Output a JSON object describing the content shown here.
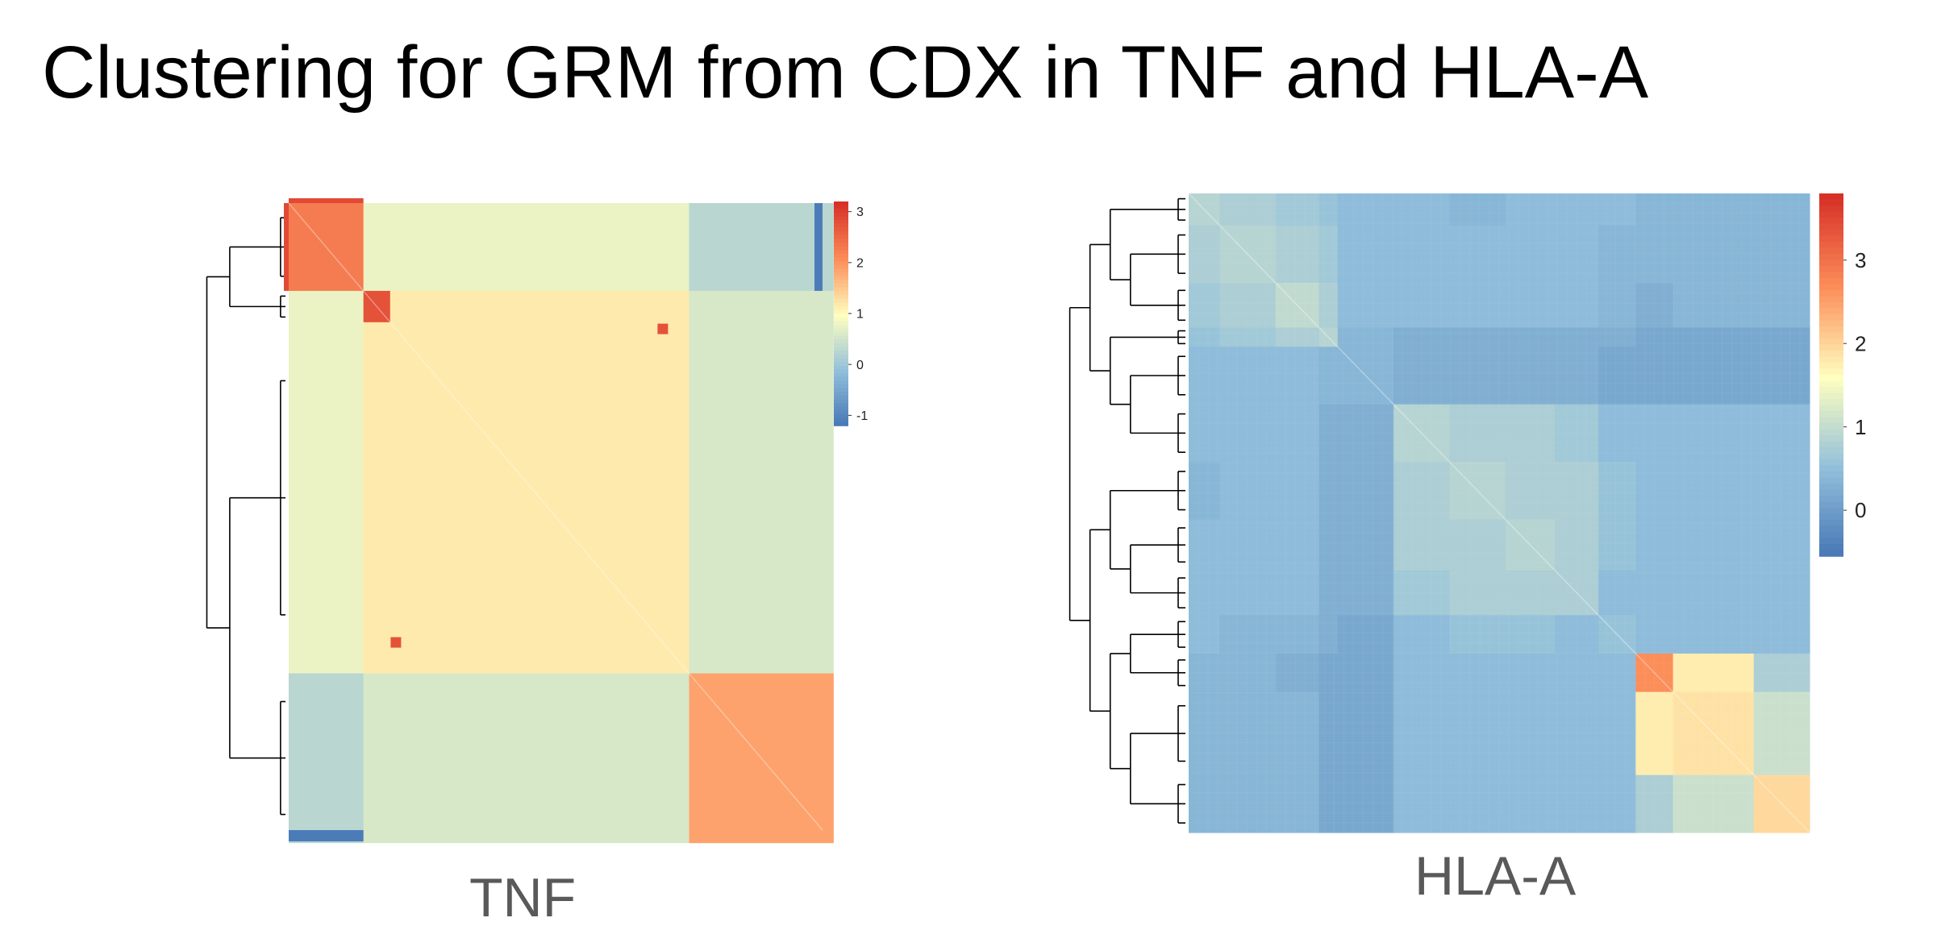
{
  "slide": {
    "title": "Clustering for GRM from CDX in TNF and HLA-A"
  },
  "chart_data": [
    {
      "type": "heatmap",
      "title": "",
      "caption": "TNF",
      "colorbar": {
        "min": -1.2,
        "max": 3.2,
        "ticks": [
          3,
          2,
          1,
          0,
          -1
        ]
      },
      "colors": {
        "low": "#4575b4",
        "midlow": "#91bfdb",
        "mid": "#ffffbf",
        "midhigh": "#fc8d59",
        "high": "#d73027"
      },
      "dendrogram": "rows",
      "cluster_fractions": [
        0.14,
        0.05,
        0.56,
        0.27
      ],
      "block_values": [
        [
          2.3,
          0.8,
          0.8,
          0.3
        ],
        [
          0.8,
          2.8,
          1.2,
          0.6
        ],
        [
          0.8,
          1.2,
          1.2,
          0.6
        ],
        [
          0.3,
          0.6,
          0.6,
          1.9
        ]
      ],
      "highlight_cells": [
        {
          "row_frac": 0.2,
          "col_frac": 0.7,
          "value": 2.8
        },
        {
          "row_frac": 0.7,
          "col_frac": 0.2,
          "value": 2.8
        }
      ]
    },
    {
      "type": "heatmap",
      "title": "",
      "caption": "HLA-A",
      "colorbar": {
        "min": -0.55,
        "max": 3.8,
        "ticks": [
          3,
          2,
          1,
          0
        ]
      },
      "colors": {
        "low": "#4575b4",
        "midlow": "#91bfdb",
        "mid": "#ffffbf",
        "midhigh": "#fc8d59",
        "high": "#d73027"
      },
      "dendrogram": "rows",
      "cluster_fractions": [
        0.05,
        0.09,
        0.07,
        0.03,
        0.09,
        0.09,
        0.09,
        0.08,
        0.07,
        0.06,
        0.06,
        0.13,
        0.09
      ],
      "block_values": [
        [
          0.9,
          0.8,
          0.7,
          0.6,
          0.5,
          0.5,
          0.4,
          0.5,
          0.5,
          0.5,
          0.4,
          0.4,
          0.4
        ],
        [
          0.8,
          0.9,
          0.8,
          0.7,
          0.5,
          0.5,
          0.5,
          0.5,
          0.5,
          0.4,
          0.4,
          0.4,
          0.4
        ],
        [
          0.7,
          0.8,
          1.0,
          0.8,
          0.5,
          0.5,
          0.5,
          0.5,
          0.5,
          0.4,
          0.3,
          0.4,
          0.4
        ],
        [
          0.6,
          0.7,
          0.8,
          0.9,
          0.4,
          0.3,
          0.3,
          0.3,
          0.3,
          0.3,
          0.2,
          0.2,
          0.2
        ],
        [
          0.5,
          0.5,
          0.5,
          0.4,
          0.4,
          0.3,
          0.3,
          0.3,
          0.3,
          0.2,
          0.2,
          0.2,
          0.2
        ],
        [
          0.5,
          0.5,
          0.5,
          0.3,
          0.3,
          0.9,
          0.8,
          0.8,
          0.7,
          0.5,
          0.5,
          0.5,
          0.5
        ],
        [
          0.4,
          0.5,
          0.5,
          0.3,
          0.3,
          0.8,
          0.9,
          0.8,
          0.8,
          0.6,
          0.5,
          0.5,
          0.5
        ],
        [
          0.5,
          0.5,
          0.5,
          0.3,
          0.3,
          0.8,
          0.8,
          0.9,
          0.8,
          0.6,
          0.5,
          0.5,
          0.5
        ],
        [
          0.5,
          0.5,
          0.5,
          0.3,
          0.3,
          0.7,
          0.8,
          0.8,
          0.8,
          0.5,
          0.5,
          0.5,
          0.5
        ],
        [
          0.5,
          0.4,
          0.4,
          0.3,
          0.2,
          0.5,
          0.6,
          0.6,
          0.5,
          0.6,
          0.5,
          0.5,
          0.5
        ],
        [
          0.4,
          0.4,
          0.3,
          0.2,
          0.2,
          0.5,
          0.5,
          0.5,
          0.5,
          0.5,
          2.7,
          1.8,
          0.8
        ],
        [
          0.4,
          0.4,
          0.4,
          0.2,
          0.2,
          0.5,
          0.5,
          0.5,
          0.5,
          0.5,
          1.8,
          1.9,
          1.1
        ],
        [
          0.4,
          0.4,
          0.4,
          0.2,
          0.2,
          0.5,
          0.5,
          0.5,
          0.5,
          0.5,
          0.8,
          1.1,
          2.0
        ]
      ]
    }
  ]
}
